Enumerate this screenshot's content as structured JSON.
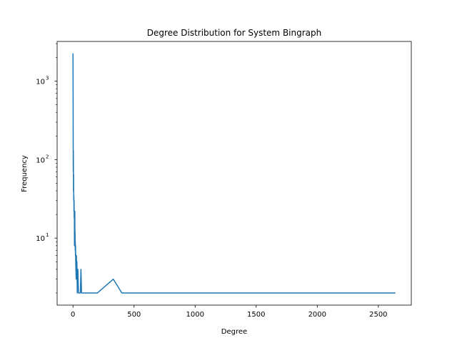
{
  "chart_data": {
    "type": "line",
    "title": "Degree Distribution for System Bingraph",
    "xlabel": "Degree",
    "ylabel": "Frequency",
    "yscale": "log",
    "xlim": [
      -130,
      2770
    ],
    "ylim": [
      1.4,
      3200
    ],
    "grid": false,
    "color": "#1f77b4",
    "xticks": [
      0,
      500,
      1000,
      1500,
      2000,
      2500
    ],
    "yticks": [
      {
        "value": 10,
        "base": "10",
        "exp": "1"
      },
      {
        "value": 100,
        "base": "10",
        "exp": "2"
      },
      {
        "value": 1000,
        "base": "10",
        "exp": "3"
      }
    ],
    "series": [
      {
        "x": [
          0,
          1,
          2,
          3,
          4,
          5,
          6,
          7,
          8,
          9,
          10,
          11,
          12,
          13,
          14,
          15,
          16,
          17,
          18,
          19,
          20,
          21,
          22,
          24,
          26,
          28,
          30,
          32,
          35,
          38,
          40,
          45,
          50,
          55,
          60,
          65,
          70,
          80,
          200,
          330,
          400,
          2640
        ],
        "y": [
          2250,
          500,
          70,
          130,
          40,
          65,
          30,
          35,
          22,
          30,
          18,
          22,
          8,
          12,
          10,
          22,
          8,
          12,
          7,
          9,
          6,
          8,
          5,
          4,
          3,
          6,
          4,
          5,
          2,
          3,
          4,
          2,
          2,
          2,
          2,
          4,
          2,
          2,
          2,
          3,
          2,
          2
        ]
      }
    ]
  }
}
